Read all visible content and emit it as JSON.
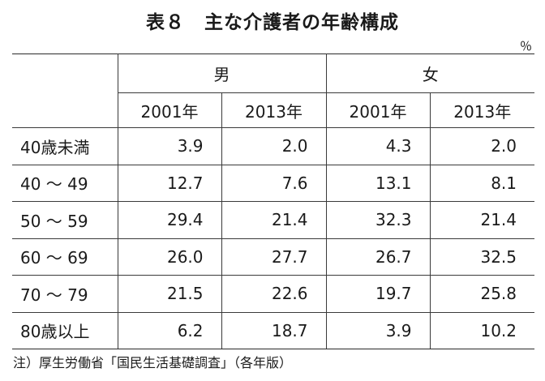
{
  "title": "表８　主な介護者の年齢構成",
  "unit": "％",
  "header": {
    "corner": "",
    "groups": [
      "男",
      "女"
    ],
    "years": [
      "2001年",
      "2013年",
      "2001年",
      "2013年"
    ]
  },
  "rows": [
    {
      "label": "40歳未満",
      "values": [
        "3.9",
        "2.0",
        "4.3",
        "2.0"
      ]
    },
    {
      "label": "40 ～ 49",
      "values": [
        "12.7",
        "7.6",
        "13.1",
        "8.1"
      ]
    },
    {
      "label": "50 ～ 59",
      "values": [
        "29.4",
        "21.4",
        "32.3",
        "21.4"
      ]
    },
    {
      "label": "60 ～ 69",
      "values": [
        "26.0",
        "27.7",
        "26.7",
        "32.5"
      ]
    },
    {
      "label": "70 ～ 79",
      "values": [
        "21.5",
        "22.6",
        "19.7",
        "25.8"
      ]
    },
    {
      "label": "80歳以上",
      "values": [
        "6.2",
        "18.7",
        "3.9",
        "10.2"
      ]
    }
  ],
  "note": "注）厚生労働省「国民生活基礎調査」（各年版）"
}
